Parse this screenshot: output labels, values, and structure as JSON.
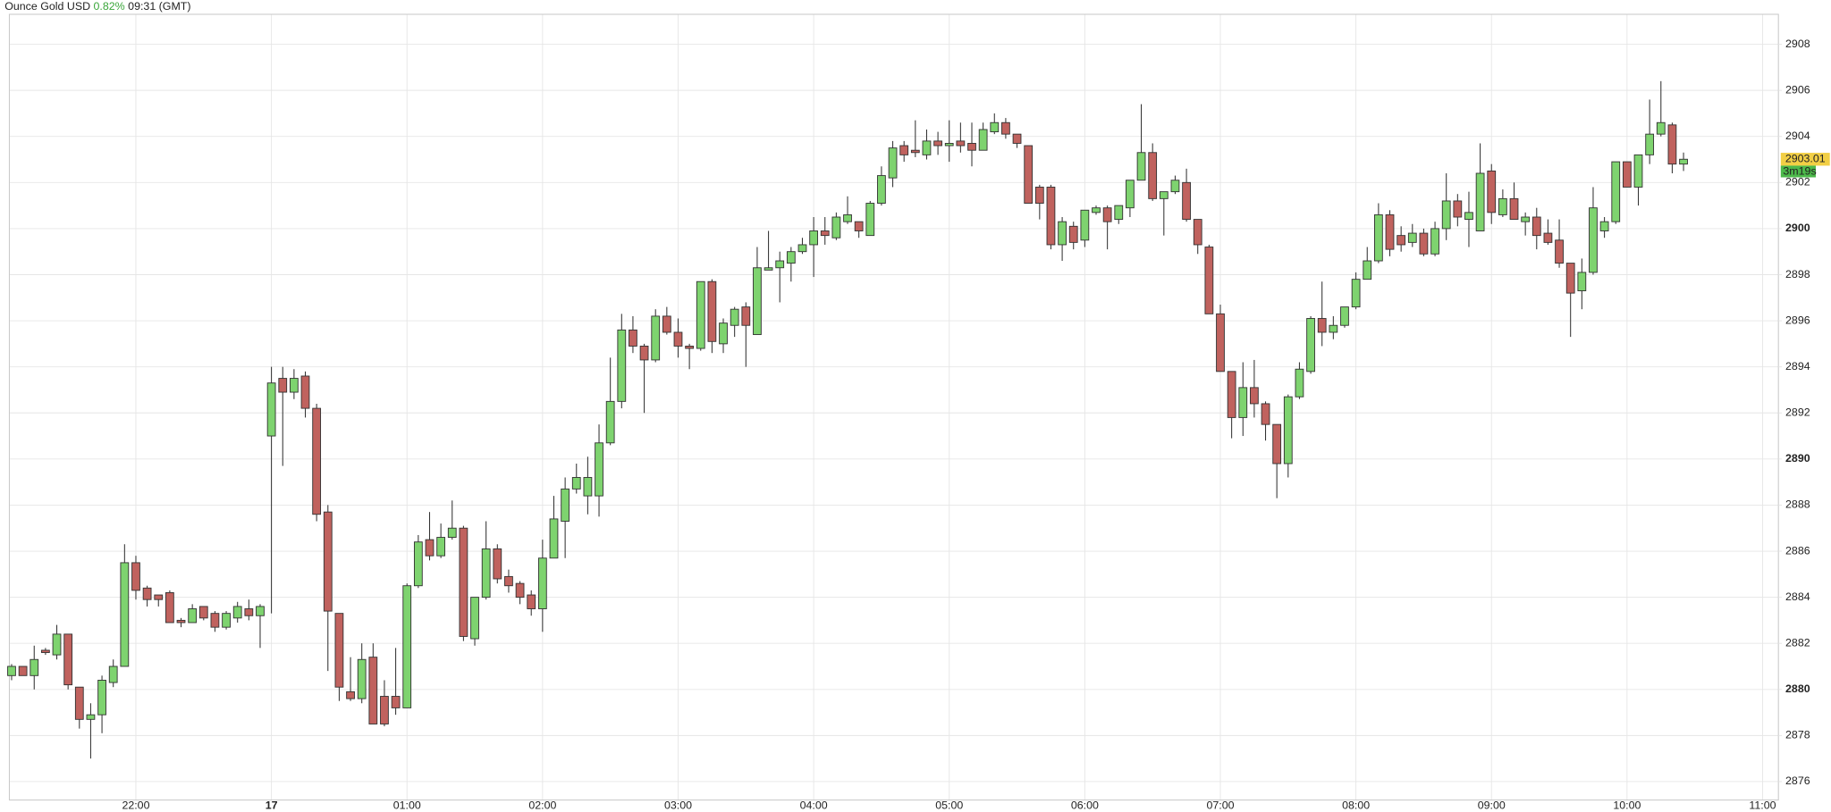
{
  "header": {
    "symbol": "Ounce Gold USD",
    "change": "0.82%",
    "time": "09:31 (GMT)"
  },
  "chart_data": {
    "type": "candlestick",
    "up_color": "#7ed36f",
    "down_color": "#c0625e",
    "open": [
      2880.6,
      2881.0,
      2880.6,
      2881.7,
      2881.5,
      2882.4,
      2880.1,
      2878.7,
      2878.9,
      2880.3,
      2881.0,
      2885.5,
      2884.4,
      2884.1,
      2884.2,
      2883.0,
      2882.9,
      2883.6,
      2883.3,
      2882.7,
      2883.1,
      2883.5,
      2883.2,
      2891.0,
      2893.5,
      2892.9,
      2893.6,
      2892.2,
      2887.7,
      2883.3,
      2879.9,
      2879.6,
      2881.4,
      2879.7,
      2879.7,
      2879.2,
      2884.5,
      2886.5,
      2885.8,
      2886.6,
      2887.0,
      2882.2,
      2884.0,
      2886.1,
      2884.9,
      2884.6,
      2884.1,
      2883.5,
      2885.7,
      2887.3,
      2888.7,
      2888.4,
      2888.4,
      2890.7,
      2892.5,
      2895.6,
      2894.9,
      2894.3,
      2896.2,
      2895.5,
      2894.9,
      2894.8,
      2897.7,
      2895.0,
      2895.8,
      2896.6,
      2895.4,
      2898.2,
      2898.3,
      2898.5,
      2899.0,
      2899.3,
      2899.9,
      2899.6,
      2900.3,
      2900.3,
      2899.7,
      2901.1,
      2902.2,
      2903.6,
      2903.4,
      2903.2,
      2903.8,
      2903.6,
      2903.8,
      2903.7,
      2903.4,
      2904.2,
      2904.6,
      2904.1,
      2903.6,
      2901.8,
      2901.8,
      2899.3,
      2900.1,
      2899.5,
      2900.7,
      2900.9,
      2900.4,
      2900.9,
      2902.1,
      2903.3,
      2901.3,
      2901.6,
      2902.0,
      2900.4,
      2899.2,
      2896.3,
      2893.8,
      2891.8,
      2893.1,
      2892.4,
      2891.5,
      2889.8,
      2892.7,
      2893.8,
      2896.1,
      2895.5,
      2895.8,
      2896.6,
      2897.8,
      2898.6,
      2900.6,
      2899.7,
      2899.4,
      2899.8,
      2898.9,
      2900.0,
      2901.2,
      2900.4,
      2899.9,
      2902.5,
      2900.6,
      2901.3,
      2900.3,
      2900.5,
      2899.8,
      2899.5,
      2898.5,
      2897.3,
      2898.1,
      2899.9,
      2900.3,
      2902.9,
      2901.8,
      2903.2,
      2904.1,
      2904.5,
      2902.8
    ],
    "high": [
      2881.1,
      2881.0,
      2881.9,
      2881.8,
      2882.8,
      2882.4,
      2880.1,
      2879.4,
      2880.6,
      2881.3,
      2886.3,
      2885.8,
      2884.5,
      2884.1,
      2884.3,
      2883.1,
      2883.7,
      2883.6,
      2883.4,
      2883.4,
      2883.8,
      2883.9,
      2883.7,
      2894.0,
      2894.0,
      2893.9,
      2893.8,
      2892.4,
      2888.0,
      2883.3,
      2881.4,
      2882.0,
      2882.0,
      2880.4,
      2881.8,
      2884.6,
      2886.7,
      2887.7,
      2887.2,
      2888.2,
      2887.1,
      2884.0,
      2887.3,
      2886.3,
      2885.2,
      2884.7,
      2884.3,
      2886.5,
      2888.4,
      2889.2,
      2889.8,
      2890.1,
      2891.5,
      2894.4,
      2896.3,
      2896.2,
      2895.0,
      2896.5,
      2896.6,
      2896.1,
      2895.0,
      2897.7,
      2897.8,
      2896.1,
      2896.6,
      2896.8,
      2899.2,
      2899.9,
      2899.0,
      2899.2,
      2899.6,
      2900.5,
      2900.5,
      2900.7,
      2901.4,
      2900.3,
      2901.2,
      2902.7,
      2903.8,
      2903.8,
      2904.7,
      2904.3,
      2904.2,
      2904.7,
      2904.6,
      2904.6,
      2904.6,
      2905.0,
      2904.8,
      2904.1,
      2903.6,
      2901.9,
      2901.9,
      2900.5,
      2900.3,
      2900.8,
      2901.0,
      2901.0,
      2901.0,
      2902.1,
      2905.4,
      2903.7,
      2901.6,
      2902.3,
      2902.6,
      2900.4,
      2899.3,
      2896.7,
      2893.8,
      2894.2,
      2894.3,
      2892.5,
      2891.5,
      2892.8,
      2894.2,
      2896.2,
      2897.7,
      2896.2,
      2896.6,
      2898.1,
      2899.2,
      2901.1,
      2900.8,
      2900.1,
      2900.2,
      2900.0,
      2900.3,
      2902.4,
      2901.5,
      2901.6,
      2903.7,
      2902.8,
      2901.7,
      2902.0,
      2900.7,
      2900.9,
      2900.4,
      2900.4,
      2898.5,
      2898.7,
      2901.8,
      2900.5,
      2902.9,
      2902.9,
      2903.2,
      2905.6,
      2906.4,
      2904.6,
      2903.3
    ],
    "low": [
      2880.4,
      2880.6,
      2880.0,
      2881.5,
      2881.3,
      2880.0,
      2878.3,
      2877.0,
      2878.1,
      2880.1,
      2881.0,
      2883.9,
      2883.6,
      2883.6,
      2882.9,
      2882.7,
      2882.9,
      2883.0,
      2882.5,
      2882.6,
      2882.9,
      2883.0,
      2881.8,
      2883.3,
      2889.7,
      2892.6,
      2891.8,
      2887.3,
      2880.8,
      2879.5,
      2879.5,
      2879.4,
      2878.5,
      2878.4,
      2878.9,
      2879.2,
      2884.4,
      2885.6,
      2885.7,
      2886.5,
      2882.1,
      2881.9,
      2883.9,
      2884.6,
      2884.2,
      2883.7,
      2883.2,
      2882.5,
      2885.7,
      2885.7,
      2888.5,
      2887.6,
      2887.5,
      2890.6,
      2892.2,
      2894.6,
      2892.0,
      2894.2,
      2895.4,
      2894.4,
      2893.9,
      2894.7,
      2894.6,
      2894.6,
      2895.3,
      2894.0,
      2895.4,
      2898.2,
      2896.8,
      2897.7,
      2898.9,
      2897.9,
      2899.3,
      2899.5,
      2900.2,
      2899.6,
      2899.7,
      2901.0,
      2901.8,
      2902.9,
      2903.1,
      2903.0,
      2903.2,
      2902.9,
      2903.3,
      2902.7,
      2903.4,
      2904.1,
      2903.9,
      2903.5,
      2901.1,
      2900.4,
      2899.1,
      2898.6,
      2899.1,
      2899.2,
      2900.6,
      2899.1,
      2900.2,
      2900.5,
      2902.1,
      2901.2,
      2899.7,
      2901.5,
      2900.3,
      2898.9,
      2896.3,
      2893.8,
      2890.9,
      2891.0,
      2891.8,
      2890.8,
      2888.3,
      2889.2,
      2892.6,
      2893.7,
      2894.9,
      2895.2,
      2895.7,
      2896.5,
      2897.8,
      2898.5,
      2898.8,
      2899.0,
      2899.2,
      2898.8,
      2898.8,
      2899.5,
      2900.1,
      2899.2,
      2899.9,
      2900.2,
      2900.5,
      2900.4,
      2899.7,
      2899.1,
      2899.3,
      2898.3,
      2895.3,
      2896.5,
      2898.0,
      2899.6,
      2900.2,
      2901.8,
      2901.0,
      2902.8,
      2904.0,
      2902.4,
      2902.5
    ],
    "close": [
      2881.0,
      2880.6,
      2881.3,
      2881.6,
      2882.4,
      2880.2,
      2878.7,
      2878.9,
      2880.4,
      2881.0,
      2885.5,
      2884.3,
      2883.9,
      2883.9,
      2882.9,
      2882.9,
      2883.5,
      2883.1,
      2882.7,
      2883.3,
      2883.6,
      2883.2,
      2883.6,
      2893.3,
      2892.9,
      2893.5,
      2892.2,
      2887.6,
      2883.4,
      2880.1,
      2879.6,
      2881.3,
      2878.5,
      2878.5,
      2879.2,
      2884.5,
      2886.4,
      2885.8,
      2886.6,
      2887.0,
      2882.3,
      2884.0,
      2886.1,
      2884.8,
      2884.5,
      2884.0,
      2883.5,
      2885.7,
      2887.4,
      2888.7,
      2889.2,
      2889.2,
      2890.7,
      2892.5,
      2895.6,
      2894.9,
      2894.3,
      2896.2,
      2895.5,
      2894.9,
      2894.8,
      2897.7,
      2895.1,
      2895.9,
      2896.5,
      2895.8,
      2898.3,
      2898.3,
      2898.6,
      2899.0,
      2899.3,
      2899.9,
      2899.7,
      2900.5,
      2900.6,
      2899.9,
      2901.1,
      2902.3,
      2903.5,
      2903.2,
      2903.3,
      2903.8,
      2903.6,
      2903.7,
      2903.6,
      2903.4,
      2904.3,
      2904.6,
      2904.1,
      2903.7,
      2901.1,
      2901.1,
      2899.3,
      2900.3,
      2899.4,
      2900.8,
      2900.9,
      2900.3,
      2901.0,
      2902.1,
      2903.3,
      2901.3,
      2901.6,
      2902.1,
      2900.4,
      2899.3,
      2896.3,
      2893.8,
      2891.8,
      2893.1,
      2892.4,
      2891.5,
      2889.8,
      2892.7,
      2893.9,
      2896.1,
      2895.5,
      2895.8,
      2896.6,
      2897.8,
      2898.6,
      2900.6,
      2899.1,
      2899.3,
      2899.8,
      2898.9,
      2900.0,
      2901.2,
      2900.5,
      2900.7,
      2902.4,
      2900.7,
      2901.3,
      2900.4,
      2900.5,
      2899.7,
      2899.4,
      2898.5,
      2897.2,
      2898.1,
      2900.9,
      2900.3,
      2902.9,
      2901.8,
      2903.2,
      2904.1,
      2904.6,
      2902.8,
      2903.01
    ],
    "ylim": [
      2875.2,
      2909.3
    ],
    "yticks": [
      2876,
      2878,
      2880,
      2882,
      2884,
      2886,
      2888,
      2890,
      2892,
      2894,
      2896,
      2898,
      2900,
      2902,
      2904,
      2906,
      2908
    ],
    "xlim": [
      -0.2,
      156.4
    ],
    "xticks": [
      {
        "value": 11,
        "label": "22:00"
      },
      {
        "value": 23,
        "label": "17",
        "bold": true
      },
      {
        "value": 35,
        "label": "01:00"
      },
      {
        "value": 47,
        "label": "02:00"
      },
      {
        "value": 59,
        "label": "03:00"
      },
      {
        "value": 71,
        "label": "04:00"
      },
      {
        "value": 83,
        "label": "05:00"
      },
      {
        "value": 95,
        "label": "06:00"
      },
      {
        "value": 107,
        "label": "07:00"
      },
      {
        "value": 119,
        "label": "08:00"
      },
      {
        "value": 131,
        "label": "09:00"
      },
      {
        "value": 143,
        "label": "10:00"
      },
      {
        "value": 155,
        "label": "11:00"
      }
    ],
    "grid": true,
    "last_price": 2903.01,
    "countdown": "3m19s"
  }
}
